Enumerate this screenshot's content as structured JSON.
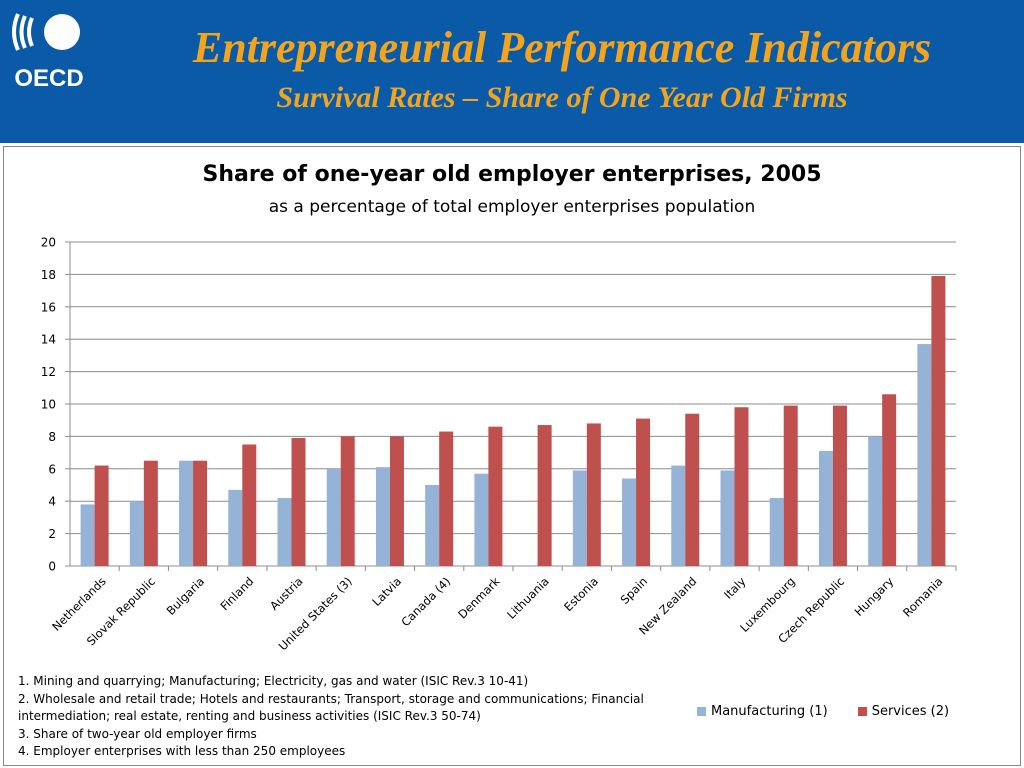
{
  "header": {
    "logo_text": "OECD",
    "title": "Entrepreneurial Performance Indicators",
    "subtitle": "Survival Rates – Share of One Year Old Firms",
    "background_color": "#0b5aa8",
    "title_color": "#f2a51c"
  },
  "chart_data": {
    "type": "bar",
    "title": "Share of one-year old employer enterprises, 2005",
    "subtitle": "as a  percentage of total employer enterprises population",
    "xlabel": "",
    "ylabel": "",
    "ylim": [
      0,
      20
    ],
    "yticks": [
      0,
      2,
      4,
      6,
      8,
      10,
      12,
      14,
      16,
      18,
      20
    ],
    "grid": true,
    "legend_position": "bottom-right",
    "categories": [
      "Netherlands",
      "Slovak Republic",
      "Bulgaria",
      "Finland",
      "Austria",
      "United States (3)",
      "Latvia",
      "Canada (4)",
      "Denmark",
      "Lithuania",
      "Estonia",
      "Spain",
      "New Zealand",
      "Italy",
      "Luxembourg",
      "Czech Republic",
      "Hungary",
      "Romania"
    ],
    "series": [
      {
        "name": "Manufacturing (1)",
        "color": "#95b3d7",
        "values": [
          3.8,
          4.0,
          6.5,
          4.7,
          4.2,
          6.0,
          6.1,
          5.0,
          5.7,
          null,
          5.9,
          5.4,
          6.2,
          5.9,
          4.2,
          7.1,
          8.0,
          13.7
        ]
      },
      {
        "name": "Services (2)",
        "color": "#c0504d",
        "values": [
          6.2,
          6.5,
          6.5,
          7.5,
          7.9,
          8.0,
          8.0,
          8.3,
          8.6,
          8.7,
          8.8,
          9.1,
          9.4,
          9.8,
          9.9,
          9.9,
          10.6,
          17.9
        ]
      }
    ]
  },
  "notes": [
    "1. Mining and quarrying; Manufacturing;  Electricity, gas and water (ISIC Rev.3 10-41)",
    "2. Wholesale and retail trade; Hotels and restaurants; Transport, storage and communications; Financial intermediation; real estate, renting and business activities (ISIC Rev.3 50-74)",
    "3. Share of two-year old employer firms",
    "4. Employer enterprises with less than 250 employees"
  ]
}
